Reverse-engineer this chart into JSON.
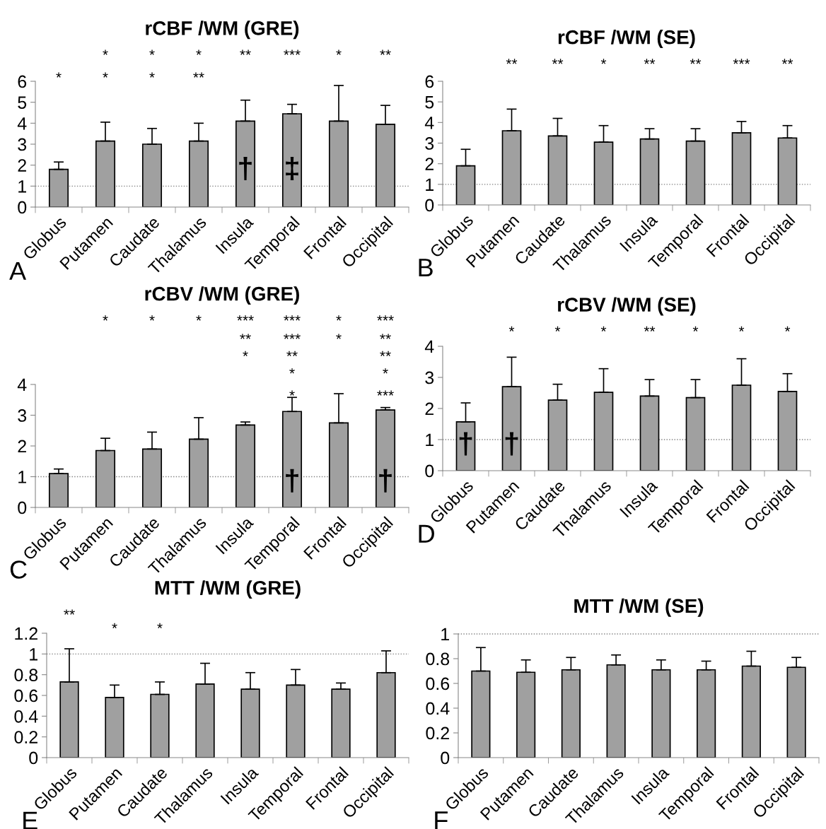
{
  "chart_data": [
    {
      "type": "bar",
      "title": "rCBF /WM (GRE)",
      "categories": [
        "Globus",
        "Putamen",
        "Caudate",
        "Thalamus",
        "Insula",
        "Temporal",
        "Frontal",
        "Occipital"
      ],
      "color": "#a0a0a0",
      "values": [
        1.8,
        3.15,
        3.0,
        3.15,
        4.1,
        4.45,
        4.1,
        3.95
      ],
      "errors": [
        [
          1.8,
          2.15
        ],
        [
          3.15,
          4.05
        ],
        [
          3.0,
          3.75
        ],
        [
          3.15,
          4.0
        ],
        [
          4.1,
          5.1
        ],
        [
          4.45,
          4.9
        ],
        [
          4.1,
          5.8
        ],
        [
          3.95,
          4.85
        ]
      ],
      "ylim": [
        0,
        6
      ],
      "yticks": [
        0,
        1,
        2,
        3,
        4,
        5,
        6
      ],
      "grid": false,
      "legend": false,
      "ref_lines": [
        {
          "axis": "y",
          "value": 1,
          "color": "#808080",
          "line_style": "dotted"
        }
      ],
      "annotations": [
        "A",
        "*",
        "*",
        "*",
        "**",
        "***",
        "*",
        "**",
        "*",
        "*",
        "*",
        "**",
        "†",
        "‡"
      ]
    },
    {
      "type": "bar",
      "title": "rCBF /WM (SE)",
      "categories": [
        "Globus",
        "Putamen",
        "Caudate",
        "Thalamus",
        "Insula",
        "Temporal",
        "Frontal",
        "Occipital"
      ],
      "color": "#a0a0a0",
      "values": [
        1.9,
        3.6,
        3.35,
        3.05,
        3.2,
        3.1,
        3.5,
        3.25
      ],
      "errors": [
        [
          1.9,
          2.7
        ],
        [
          3.6,
          4.65
        ],
        [
          3.35,
          4.2
        ],
        [
          3.05,
          3.85
        ],
        [
          3.2,
          3.7
        ],
        [
          3.1,
          3.7
        ],
        [
          3.5,
          4.05
        ],
        [
          3.25,
          3.85
        ]
      ],
      "ylim": [
        0,
        6
      ],
      "yticks": [
        0,
        1,
        2,
        3,
        4,
        5,
        6
      ],
      "grid": false,
      "legend": false,
      "ref_lines": [
        {
          "axis": "y",
          "value": 1,
          "color": "#808080",
          "line_style": "dotted"
        }
      ],
      "annotations": [
        "B",
        "**",
        "**",
        "*",
        "**",
        "**",
        "***",
        "**"
      ]
    },
    {
      "type": "bar",
      "title": "rCBV /WM (GRE)",
      "categories": [
        "Globus",
        "Putamen",
        "Caudate",
        "Thalamus",
        "Insula",
        "Temporal",
        "Frontal",
        "Occipital"
      ],
      "color": "#a0a0a0",
      "values": [
        1.1,
        1.85,
        1.9,
        2.22,
        2.68,
        3.12,
        2.75,
        3.17
      ],
      "errors": [
        [
          1.1,
          1.25
        ],
        [
          1.85,
          2.25
        ],
        [
          1.9,
          2.45
        ],
        [
          2.22,
          2.92
        ],
        [
          2.68,
          2.78
        ],
        [
          3.12,
          3.58
        ],
        [
          2.75,
          3.7
        ],
        [
          3.17,
          3.25
        ]
      ],
      "ylim": [
        0,
        4
      ],
      "yticks": [
        0,
        1,
        2,
        3,
        4
      ],
      "grid": false,
      "legend": false,
      "ref_lines": [
        {
          "axis": "y",
          "value": 1,
          "color": "#808080",
          "line_style": "dotted"
        }
      ],
      "annotations": [
        "C",
        "*",
        "*",
        "*",
        "***",
        "***",
        "*",
        "***",
        "**",
        "***",
        "*",
        "**",
        "*",
        "**",
        "**",
        "*",
        "*",
        "*",
        "***",
        "†",
        "†"
      ]
    },
    {
      "type": "bar",
      "title": "rCBV /WM (SE)",
      "categories": [
        "Globus",
        "Putamen",
        "Caudate",
        "Thalamus",
        "Insula",
        "Temporal",
        "Frontal",
        "Occipital"
      ],
      "color": "#a0a0a0",
      "values": [
        1.57,
        2.7,
        2.27,
        2.52,
        2.4,
        2.35,
        2.75,
        2.55
      ],
      "errors": [
        [
          1.57,
          2.18
        ],
        [
          2.7,
          3.65
        ],
        [
          2.27,
          2.78
        ],
        [
          2.52,
          3.28
        ],
        [
          2.4,
          2.93
        ],
        [
          2.35,
          2.93
        ],
        [
          2.75,
          3.6
        ],
        [
          2.55,
          3.12
        ]
      ],
      "ylim": [
        0,
        4
      ],
      "yticks": [
        0,
        1,
        2,
        3,
        4
      ],
      "grid": false,
      "legend": false,
      "ref_lines": [
        {
          "axis": "y",
          "value": 1,
          "color": "#808080",
          "line_style": "dotted"
        }
      ],
      "annotations": [
        "D",
        "*",
        "*",
        "*",
        "**",
        "*",
        "*",
        "*",
        "†",
        "†"
      ]
    },
    {
      "type": "bar",
      "title": "MTT /WM (GRE)",
      "categories": [
        "Globus",
        "Putamen",
        "Caudate",
        "Thalamus",
        "Insula",
        "Temporal",
        "Frontal",
        "Occipital"
      ],
      "color": "#a0a0a0",
      "values": [
        0.73,
        0.58,
        0.61,
        0.71,
        0.66,
        0.7,
        0.66,
        0.82
      ],
      "errors": [
        [
          0.73,
          1.05
        ],
        [
          0.58,
          0.7
        ],
        [
          0.61,
          0.73
        ],
        [
          0.71,
          0.91
        ],
        [
          0.66,
          0.82
        ],
        [
          0.7,
          0.85
        ],
        [
          0.66,
          0.72
        ],
        [
          0.82,
          1.03
        ]
      ],
      "ylim": [
        0,
        1.2
      ],
      "yticks": [
        0,
        0.2,
        0.4,
        0.6,
        0.8,
        1,
        1.2
      ],
      "grid": false,
      "legend": false,
      "ref_lines": [
        {
          "axis": "y",
          "value": 1,
          "color": "#808080",
          "line_style": "dotted"
        }
      ],
      "annotations": [
        "E",
        "**",
        "*",
        "*"
      ]
    },
    {
      "type": "bar",
      "title": "MTT /WM (SE)",
      "categories": [
        "Globus",
        "Putamen",
        "Caudate",
        "Thalamus",
        "Insula",
        "Temporal",
        "Frontal",
        "Occipital"
      ],
      "color": "#a0a0a0",
      "values": [
        0.7,
        0.69,
        0.71,
        0.75,
        0.71,
        0.71,
        0.74,
        0.73
      ],
      "errors": [
        [
          0.7,
          0.89
        ],
        [
          0.69,
          0.79
        ],
        [
          0.71,
          0.81
        ],
        [
          0.75,
          0.83
        ],
        [
          0.71,
          0.79
        ],
        [
          0.71,
          0.78
        ],
        [
          0.74,
          0.86
        ],
        [
          0.73,
          0.81
        ]
      ],
      "ylim": [
        0,
        1
      ],
      "yticks": [
        0,
        0.2,
        0.4,
        0.6,
        0.8,
        1
      ],
      "grid": false,
      "legend": false,
      "ref_lines": [
        {
          "axis": "y",
          "value": 1,
          "color": "#808080",
          "line_style": "dotted"
        }
      ],
      "annotations": [
        "F"
      ]
    }
  ]
}
